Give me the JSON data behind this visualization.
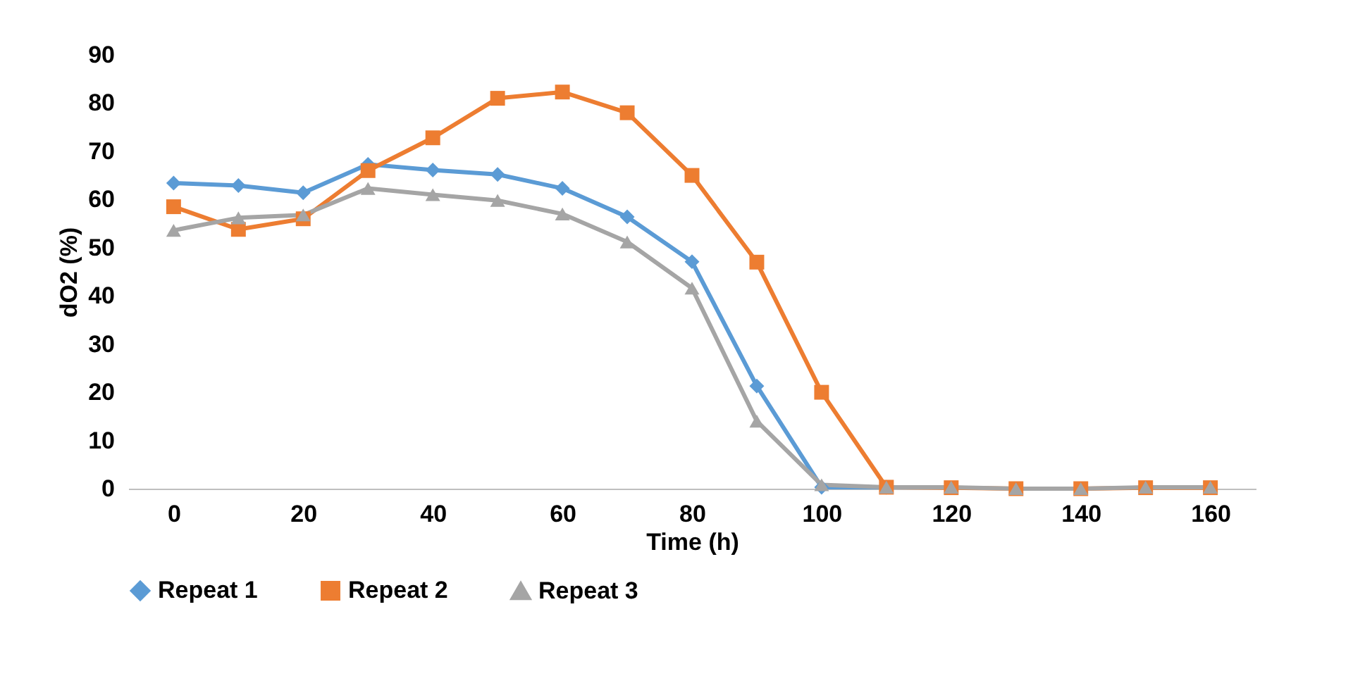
{
  "chart_data": {
    "type": "line",
    "xlabel": "Time (h)",
    "ylabel": "dO2 (%)",
    "x": [
      0,
      10,
      20,
      30,
      40,
      50,
      60,
      70,
      80,
      90,
      100,
      110,
      120,
      130,
      140,
      150,
      160
    ],
    "xlim": [
      -7,
      167
    ],
    "xticks": [
      0,
      20,
      40,
      60,
      80,
      100,
      120,
      140,
      160
    ],
    "ylim": [
      0,
      90
    ],
    "yticks": [
      0,
      10,
      20,
      30,
      40,
      50,
      60,
      70,
      80,
      90
    ],
    "grid": false,
    "legend": "bottom",
    "line_style": "solid",
    "series": [
      {
        "name": "Repeat 1",
        "color": "#5b9bd5",
        "marker": "diamond",
        "values": [
          63.4,
          62.9,
          61.4,
          67.3,
          66.1,
          65.2,
          62.3,
          56.4,
          47.1,
          21.3,
          0.3,
          0.3,
          null,
          null,
          null,
          null,
          null
        ]
      },
      {
        "name": "Repeat 2",
        "color": "#ed7d31",
        "marker": "square",
        "values": [
          58.5,
          53.8,
          56,
          66,
          72.8,
          81,
          82.3,
          78,
          65,
          47,
          20,
          0.3,
          0.2,
          0,
          0,
          0.2,
          0.2
        ]
      },
      {
        "name": "Repeat 3",
        "color": "#a5a5a5",
        "marker": "triangle",
        "values": [
          53.6,
          56.2,
          56.8,
          62.3,
          61,
          59.8,
          57,
          51.2,
          41.6,
          14,
          0.8,
          0.3,
          0.3,
          0,
          0,
          0.3,
          0.3
        ]
      }
    ]
  }
}
